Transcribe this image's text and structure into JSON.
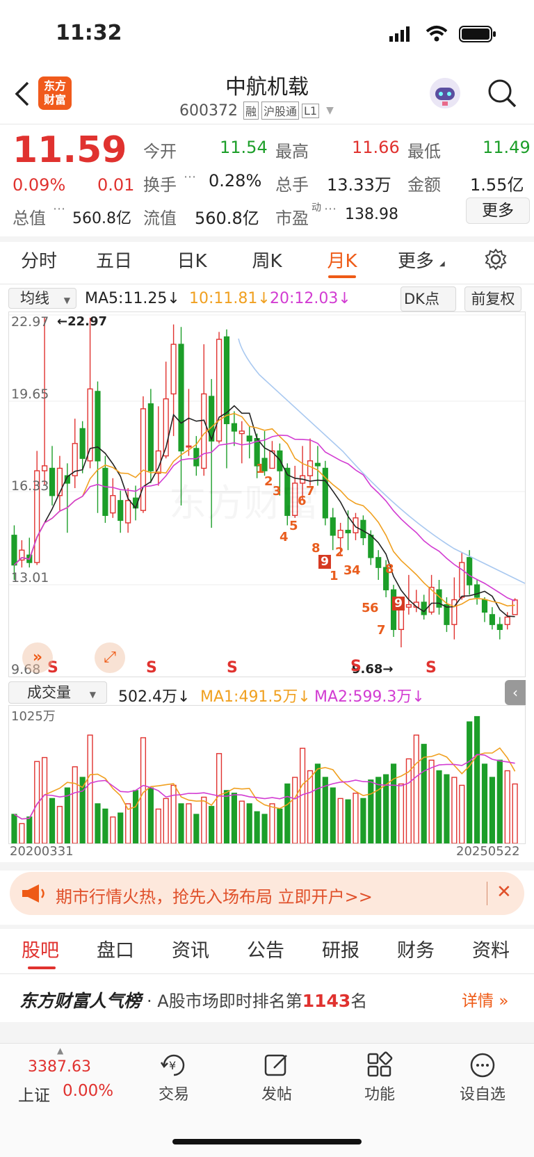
{
  "status_bar": {
    "time": "11:32"
  },
  "header": {
    "logo_line1": "东方",
    "logo_line2": "财富",
    "name": "中航机载",
    "code": "600372",
    "badges": [
      "融",
      "沪股通",
      "L1"
    ]
  },
  "quote": {
    "price": "11.59",
    "change_pct": "0.09%",
    "change": "0.01",
    "open_label": "今开",
    "open": "11.54",
    "high_label": "最高",
    "high": "11.66",
    "low_label": "最低",
    "low": "11.49",
    "turnover_label": "换手",
    "turnover": "0.28%",
    "volume_label": "总手",
    "volume": "13.33万",
    "amount_label": "金额",
    "amount": "1.55亿",
    "mktcap_label": "总值",
    "mktcap": "560.8亿",
    "float_label": "流值",
    "float": "560.8亿",
    "pe_label": "市盈",
    "pe_sup": "动",
    "pe": "138.98",
    "more_label": "更多"
  },
  "period_tabs": [
    "分时",
    "五日",
    "日K",
    "周K",
    "月K",
    "更多"
  ],
  "active_period": "月K",
  "ma_bar": {
    "selector": "均线",
    "ma5": "MA5:11.25↓",
    "ma10": "10:11.81↓",
    "ma20": "20:12.03↓",
    "dk": "DK点",
    "adjust": "前复权"
  },
  "price_axis": [
    "22.97",
    "19.65",
    "16.33",
    "13.01",
    "9.68"
  ],
  "annotations": {
    "high": "←22.97",
    "low": "9.68→"
  },
  "sell_signals": [
    "S",
    "S",
    "S",
    "S",
    "S"
  ],
  "vol_bar": {
    "selector": "成交量",
    "vol": "502.4万↓",
    "ma1": "MA1:491.5万↓",
    "ma2": "MA2:599.3万↓"
  },
  "vol_axis_max": "1025万",
  "date_start": "20200331",
  "date_end": "20250522",
  "banner": {
    "text": "期市行情火热，抢先入场布局 立即开户>>"
  },
  "section_tabs": [
    "股吧",
    "盘口",
    "资讯",
    "公告",
    "研报",
    "财务",
    "资料"
  ],
  "ranking": {
    "brand": "东方财富人气榜",
    "prefix": "· A股市场即时排名第",
    "rank": "1143",
    "suffix": "名",
    "detail": "详情"
  },
  "bottom_nav": {
    "index_value": "3387.63",
    "index_name": "上证",
    "index_change": "0.00%",
    "items": [
      "交易",
      "发帖",
      "功能",
      "设自选"
    ]
  },
  "colors": {
    "up": "#e0322f",
    "down": "#1c9e29",
    "accent": "#ee5a16",
    "ma5": "#222222",
    "ma10": "#f0a020",
    "ma20": "#d23cd2"
  }
}
